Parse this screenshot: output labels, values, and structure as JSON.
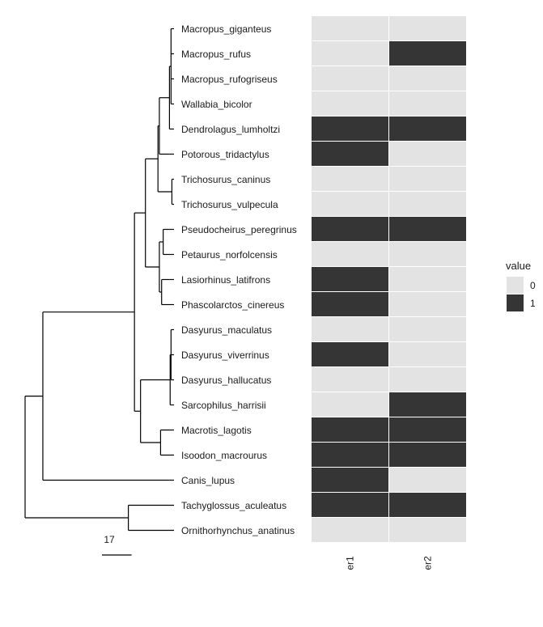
{
  "chart_data": {
    "type": "heatmap",
    "subtype": "phylogenetic-tree-with-binary-heatmap",
    "title": "",
    "tips": [
      "Macropus_giganteus",
      "Macropus_rufus",
      "Macropus_rufogriseus",
      "Wallabia_bicolor",
      "Dendrolagus_lumholtzi",
      "Potorous_tridactylus",
      "Trichosurus_caninus",
      "Trichosurus_vulpecula",
      "Pseudocheirus_peregrinus",
      "Petaurus_norfolcensis",
      "Lasiorhinus_latifrons",
      "Phascolarctos_cinereus",
      "Dasyurus_maculatus",
      "Dasyurus_viverrinus",
      "Dasyurus_hallucatus",
      "Sarcophilus_harrisii",
      "Macrotis_lagotis",
      "Isoodon_macrourus",
      "Canis_lupus",
      "Tachyglossus_aculeatus",
      "Ornithorhynchus_anatinus"
    ],
    "columns": [
      "er1",
      "er2"
    ],
    "values": [
      [
        0,
        0
      ],
      [
        0,
        1
      ],
      [
        0,
        0
      ],
      [
        0,
        0
      ],
      [
        1,
        1
      ],
      [
        1,
        0
      ],
      [
        0,
        0
      ],
      [
        0,
        0
      ],
      [
        1,
        1
      ],
      [
        0,
        0
      ],
      [
        1,
        0
      ],
      [
        1,
        0
      ],
      [
        0,
        0
      ],
      [
        1,
        0
      ],
      [
        0,
        0
      ],
      [
        0,
        1
      ],
      [
        1,
        1
      ],
      [
        1,
        1
      ],
      [
        1,
        0
      ],
      [
        1,
        1
      ],
      [
        0,
        0
      ]
    ],
    "tree": {
      "depth": 0,
      "children": [
        {
          "depth": 10.2,
          "children": [
            {
              "depth": 62.8,
              "children": [
                {
                  "depth": 69.1,
                  "children": [
                    {
                      "depth": 76.3,
                      "children": [
                        {
                          "depth": 77.1,
                          "children": [
                            {
                              "depth": 82.9,
                              "children": [
                                {
                                  "depth": 83.8,
                                  "children": [
                                    {
                                      "tip": 0,
                                      "depth": 85.5
                                    },
                                    {
                                      "tip": 1,
                                      "depth": 85.5
                                    },
                                    {
                                      "tip": 2,
                                      "depth": 85.5
                                    },
                                    {
                                      "tip": 3,
                                      "depth": 85.5
                                    }
                                  ]
                                },
                                {
                                  "tip": 4,
                                  "depth": 85.5
                                }
                              ]
                            },
                            {
                              "tip": 5,
                              "depth": 85.5
                            }
                          ]
                        },
                        {
                          "depth": 84.3,
                          "children": [
                            {
                              "tip": 6,
                              "depth": 85.5
                            },
                            {
                              "tip": 7,
                              "depth": 85.5
                            }
                          ]
                        }
                      ]
                    },
                    {
                      "depth": 77.1,
                      "children": [
                        {
                          "depth": 79.3,
                          "children": [
                            {
                              "tip": 8,
                              "depth": 85.5
                            },
                            {
                              "tip": 9,
                              "depth": 85.5
                            }
                          ]
                        },
                        {
                          "depth": 78.4,
                          "children": [
                            {
                              "tip": 10,
                              "depth": 85.5
                            },
                            {
                              "tip": 11,
                              "depth": 85.5
                            }
                          ]
                        }
                      ]
                    }
                  ]
                },
                {
                  "depth": 66.3,
                  "children": [
                    {
                      "depth": 83.3,
                      "children": [
                        {
                          "depth": 83.8,
                          "children": [
                            {
                              "tip": 12,
                              "depth": 85.5
                            },
                            {
                              "tip": 13,
                              "depth": 85.5
                            },
                            {
                              "tip": 14,
                              "depth": 85.5
                            }
                          ]
                        },
                        {
                          "tip": 15,
                          "depth": 85.5
                        }
                      ]
                    },
                    {
                      "depth": 77.8,
                      "children": [
                        {
                          "tip": 16,
                          "depth": 85.5
                        },
                        {
                          "tip": 17,
                          "depth": 85.5
                        }
                      ]
                    }
                  ]
                }
              ]
            },
            {
              "tip": 18,
              "depth": 85.5
            }
          ]
        },
        {
          "depth": 59.3,
          "children": [
            {
              "tip": 19,
              "depth": 85.5
            },
            {
              "tip": 20,
              "depth": 85.5
            }
          ]
        }
      ]
    },
    "scale_bar": {
      "label": "17",
      "length": 17
    },
    "legend": {
      "title": "value",
      "position": "right",
      "entries": [
        {
          "label": "0",
          "color": "#e3e3e3"
        },
        {
          "label": "1",
          "color": "#353535"
        }
      ]
    },
    "colors": {
      "zero": "#e3e3e3",
      "one": "#353535",
      "branch": "#000000",
      "grid": "#ffffff"
    }
  }
}
